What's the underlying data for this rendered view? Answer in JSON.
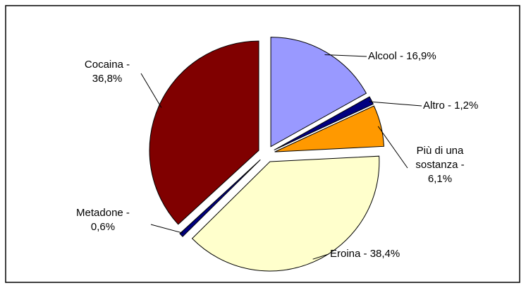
{
  "chart_data": {
    "type": "pie",
    "values": [
      16.9,
      1.2,
      6.1,
      38.4,
      0.6,
      36.8
    ],
    "value_labels": [
      "Alcool - 16,9%",
      "Altro - 1,2%",
      "Più di una sostanza - 6,1%",
      "Eroina - 38,4%",
      "Metadone - 0,6%",
      "Cocaina - 36,8%"
    ],
    "colors": [
      "#9999ff",
      "#000080",
      "#ff9900",
      "#ffffcc",
      "#000080",
      "#800000"
    ]
  }
}
